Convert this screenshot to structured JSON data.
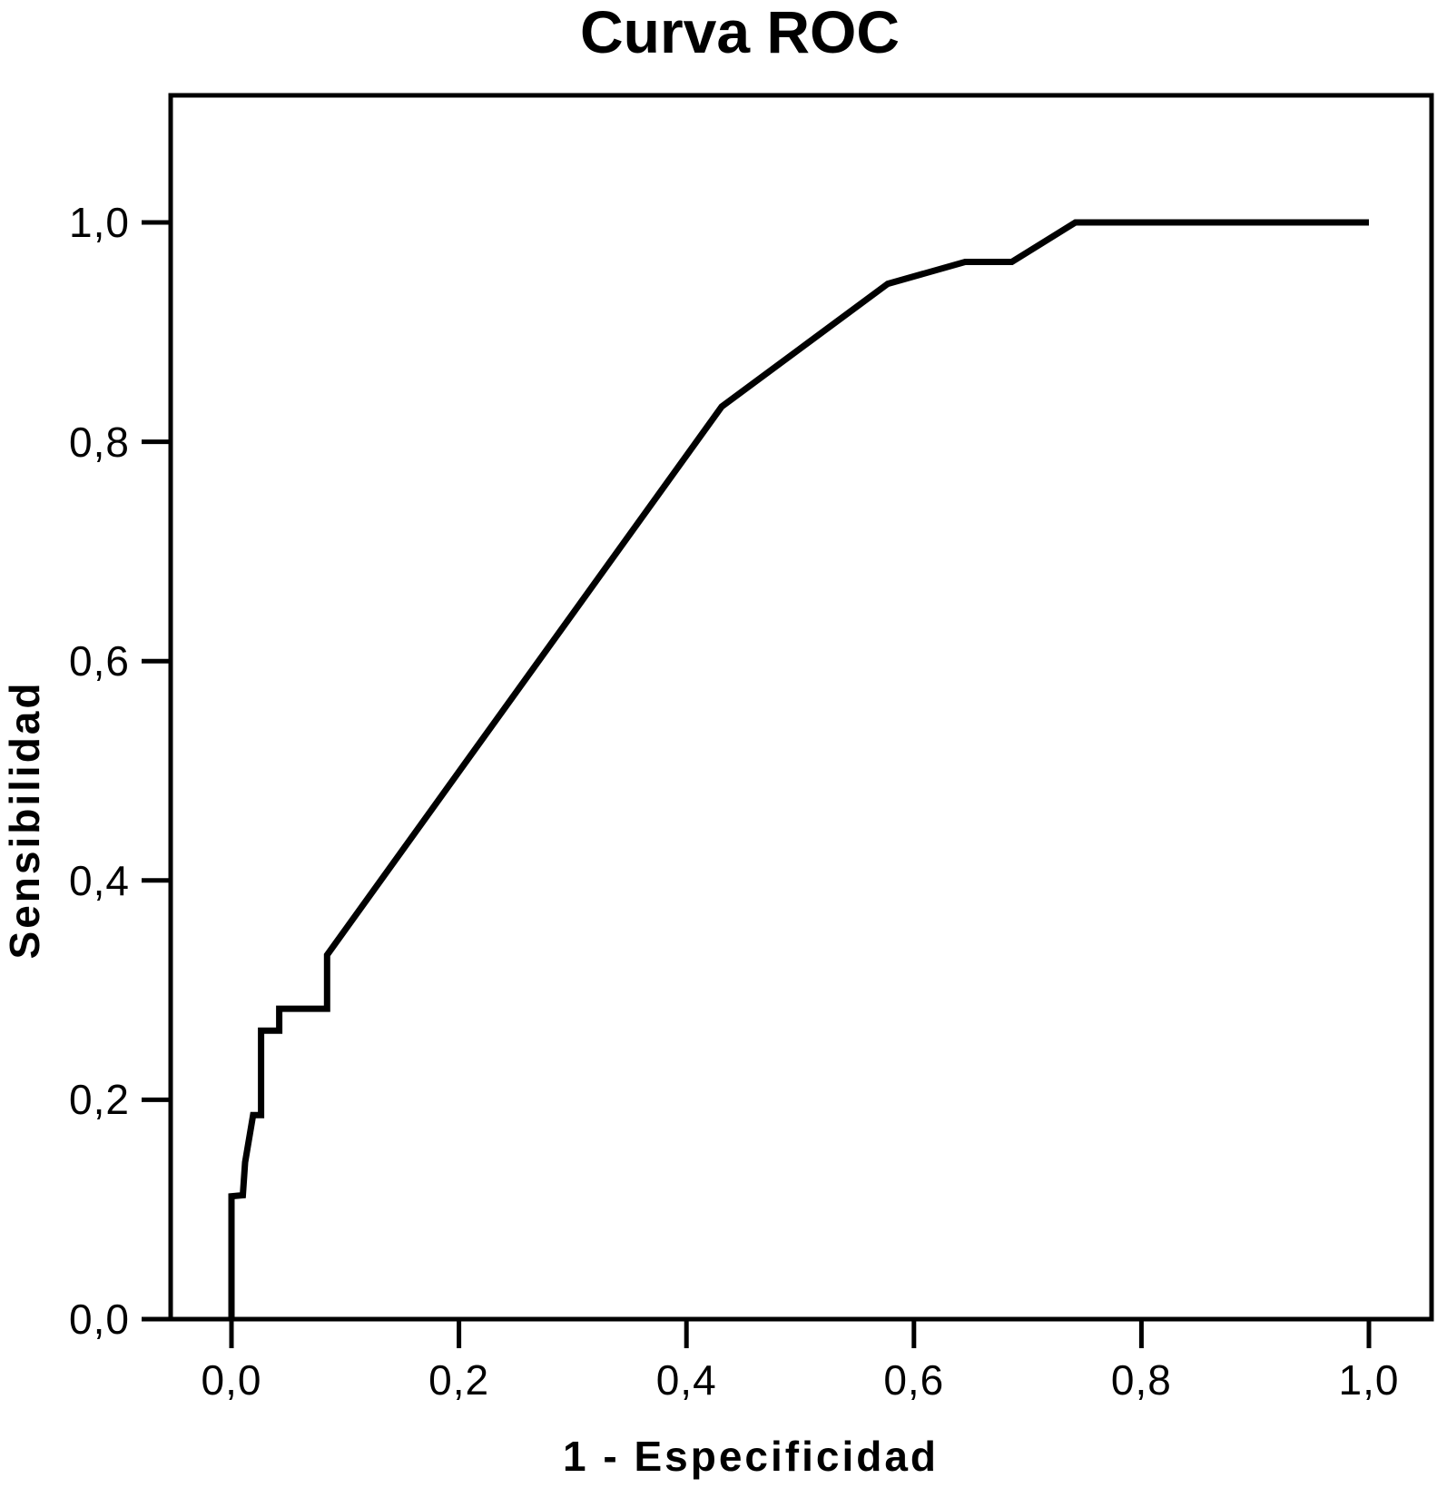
{
  "chart_data": {
    "type": "line",
    "subtype": "roc-curve",
    "title": "Curva ROC",
    "xlabel": "1 - Especificidad",
    "ylabel": "Sensibilidad",
    "xlim": [
      0.0,
      1.0
    ],
    "ylim": [
      0.0,
      1.0
    ],
    "grid": false,
    "legend": "none",
    "frame_color": "#000000",
    "background_color": "#ffffff",
    "x_ticks": [
      {
        "label": "0,0",
        "value": 0.0
      },
      {
        "label": "0,2",
        "value": 0.2
      },
      {
        "label": "0,4",
        "value": 0.4
      },
      {
        "label": "0,6",
        "value": 0.6
      },
      {
        "label": "0,8",
        "value": 0.8
      },
      {
        "label": "1,0",
        "value": 1.0
      }
    ],
    "y_ticks": [
      {
        "label": "0,0",
        "value": 0.0
      },
      {
        "label": "0,2",
        "value": 0.2
      },
      {
        "label": "0,4",
        "value": 0.4
      },
      {
        "label": "0,6",
        "value": 0.6
      },
      {
        "label": "0,8",
        "value": 0.8
      },
      {
        "label": "1,0",
        "value": 1.0
      }
    ],
    "series": [
      {
        "name": "ROC",
        "color": "#000000",
        "points": [
          [
            0.0,
            0.0
          ],
          [
            0.0,
            0.112
          ],
          [
            0.01,
            0.113
          ],
          [
            0.012,
            0.143
          ],
          [
            0.019,
            0.186
          ],
          [
            0.026,
            0.186
          ],
          [
            0.026,
            0.263
          ],
          [
            0.042,
            0.263
          ],
          [
            0.042,
            0.283
          ],
          [
            0.084,
            0.283
          ],
          [
            0.084,
            0.332
          ],
          [
            0.431,
            0.832
          ],
          [
            0.577,
            0.944
          ],
          [
            0.645,
            0.964
          ],
          [
            0.686,
            0.964
          ],
          [
            0.742,
            1.0
          ],
          [
            1.0,
            1.0
          ]
        ]
      }
    ]
  }
}
